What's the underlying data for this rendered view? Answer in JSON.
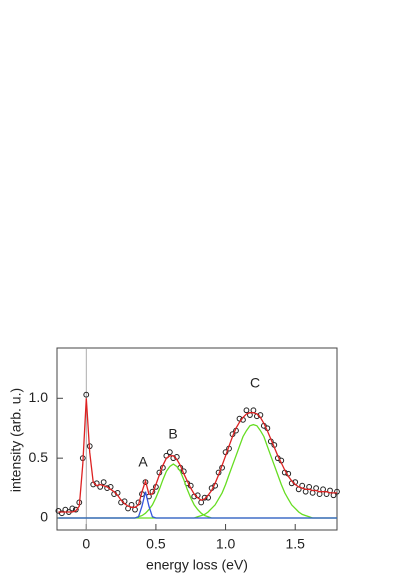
{
  "chart_data": {
    "type": "line",
    "xlabel": "energy loss (eV)",
    "ylabel": "intensity (arb. u.)",
    "xlim": [
      -0.21,
      1.8
    ],
    "ylim": [
      -0.1,
      1.42
    ],
    "xticks": [
      0,
      0.5,
      {
        "value": 1,
        "label": "1.0"
      },
      1.5
    ],
    "yticks": [
      0,
      0.5,
      {
        "value": 1,
        "label": "1.0"
      }
    ],
    "annotations": [
      "A",
      "B",
      "C"
    ],
    "x": [
      -0.2,
      -0.175,
      -0.15,
      -0.125,
      -0.1,
      -0.075,
      -0.05,
      -0.025,
      0,
      0.025,
      0.05,
      0.075,
      0.1,
      0.125,
      0.15,
      0.175,
      0.2,
      0.225,
      0.25,
      0.275,
      0.3,
      0.325,
      0.35,
      0.375,
      0.4,
      0.425,
      0.45,
      0.475,
      0.5,
      0.525,
      0.55,
      0.575,
      0.6,
      0.625,
      0.65,
      0.675,
      0.7,
      0.725,
      0.75,
      0.775,
      0.8,
      0.825,
      0.85,
      0.875,
      0.9,
      0.925,
      0.95,
      0.975,
      1,
      1.025,
      1.05,
      1.075,
      1.1,
      1.125,
      1.15,
      1.175,
      1.2,
      1.225,
      1.25,
      1.275,
      1.3,
      1.325,
      1.35,
      1.375,
      1.4,
      1.425,
      1.45,
      1.475,
      1.5,
      1.525,
      1.55,
      1.575,
      1.6,
      1.625,
      1.65,
      1.675,
      1.7,
      1.725,
      1.75,
      1.775,
      1.8
    ],
    "series": [
      {
        "mode": "markers",
        "color": "#222222",
        "values": [
          0.06,
          0.04,
          0.07,
          0.05,
          0.08,
          0.07,
          0.13,
          0.5,
          1.03,
          0.6,
          0.28,
          0.29,
          0.26,
          0.3,
          0.25,
          0.26,
          0.2,
          0.21,
          0.13,
          0.14,
          0.08,
          0.11,
          0.07,
          0.13,
          0.2,
          0.3,
          0.18,
          0.22,
          0.26,
          0.38,
          0.42,
          0.52,
          0.55,
          0.5,
          0.51,
          0.42,
          0.39,
          0.29,
          0.27,
          0.18,
          0.19,
          0.13,
          0.17,
          0.17,
          0.25,
          0.27,
          0.38,
          0.42,
          0.55,
          0.58,
          0.7,
          0.73,
          0.83,
          0.82,
          0.9,
          0.86,
          0.9,
          0.85,
          0.86,
          0.77,
          0.75,
          0.64,
          0.61,
          0.5,
          0.48,
          0.38,
          0.37,
          0.29,
          0.3,
          0.24,
          0.27,
          0.22,
          0.26,
          0.21,
          0.25,
          0.2,
          0.24,
          0.2,
          0.23,
          0.19,
          0.22
        ]
      },
      {
        "mode": "line",
        "color": "#66dd22",
        "values": [
          0,
          0,
          0,
          0,
          0,
          0,
          0,
          0,
          0,
          0,
          0,
          0,
          0,
          0,
          0,
          0,
          0,
          0,
          0,
          0,
          0,
          0,
          0,
          0.01,
          0.02,
          0.04,
          0.07,
          0.11,
          0.17,
          0.24,
          0.32,
          0.39,
          0.43,
          0.45,
          0.43,
          0.39,
          0.32,
          0.24,
          0.17,
          0.11,
          0.07,
          0.04,
          0.02,
          0.01,
          0,
          0,
          0,
          0,
          0,
          0,
          0,
          0,
          0,
          0,
          0,
          0,
          0,
          0,
          0,
          0,
          0,
          0,
          0,
          0,
          0,
          0,
          0,
          0,
          0,
          0,
          0,
          0,
          0,
          0,
          0,
          0,
          0,
          0,
          0,
          0,
          0
        ]
      },
      {
        "mode": "line",
        "color": "#66dd22",
        "values": [
          0,
          0,
          0,
          0,
          0,
          0,
          0,
          0,
          0,
          0,
          0,
          0,
          0,
          0,
          0,
          0,
          0,
          0,
          0,
          0,
          0,
          0,
          0,
          0,
          0,
          0,
          0,
          0,
          0,
          0,
          0,
          0,
          0,
          0,
          0,
          0,
          0,
          0,
          0,
          0,
          0.01,
          0.02,
          0.03,
          0.05,
          0.08,
          0.11,
          0.16,
          0.21,
          0.28,
          0.36,
          0.44,
          0.52,
          0.6,
          0.68,
          0.73,
          0.77,
          0.78,
          0.77,
          0.73,
          0.68,
          0.6,
          0.52,
          0.44,
          0.36,
          0.28,
          0.21,
          0.16,
          0.11,
          0.08,
          0.05,
          0.03,
          0.02,
          0.01,
          0,
          0,
          0,
          0,
          0,
          0,
          0,
          0
        ]
      },
      {
        "mode": "line",
        "color": "#3355dd",
        "values": [
          0,
          0,
          0,
          0,
          0,
          0,
          0,
          0,
          0,
          0,
          0,
          0,
          0,
          0,
          0,
          0,
          0,
          0,
          0,
          0,
          0,
          0,
          0,
          0.01,
          0.1,
          0.22,
          0.1,
          0.01,
          0,
          0,
          0,
          0,
          0,
          0,
          0,
          0,
          0,
          0,
          0,
          0,
          0,
          0,
          0,
          0,
          0,
          0,
          0,
          0,
          0,
          0,
          0,
          0,
          0,
          0,
          0,
          0,
          0,
          0,
          0,
          0,
          0,
          0,
          0,
          0,
          0,
          0,
          0,
          0,
          0,
          0,
          0,
          0,
          0,
          0,
          0,
          0,
          0,
          0,
          0,
          0,
          0
        ]
      },
      {
        "mode": "line",
        "color": "#dd2222",
        "values": [
          0.05,
          0.05,
          0.05,
          0.05,
          0.05,
          0.06,
          0.1,
          0.45,
          1.0,
          0.55,
          0.3,
          0.27,
          0.28,
          0.27,
          0.26,
          0.24,
          0.22,
          0.19,
          0.15,
          0.12,
          0.1,
          0.09,
          0.09,
          0.11,
          0.22,
          0.31,
          0.2,
          0.2,
          0.28,
          0.36,
          0.44,
          0.5,
          0.52,
          0.52,
          0.49,
          0.44,
          0.37,
          0.31,
          0.25,
          0.2,
          0.17,
          0.15,
          0.16,
          0.19,
          0.23,
          0.29,
          0.36,
          0.44,
          0.52,
          0.6,
          0.68,
          0.75,
          0.8,
          0.84,
          0.87,
          0.88,
          0.88,
          0.87,
          0.84,
          0.79,
          0.73,
          0.66,
          0.59,
          0.52,
          0.46,
          0.4,
          0.35,
          0.31,
          0.28,
          0.26,
          0.25,
          0.24,
          0.24,
          0.23,
          0.23,
          0.22,
          0.22,
          0.22,
          0.21,
          0.21,
          0.21
        ]
      }
    ]
  }
}
